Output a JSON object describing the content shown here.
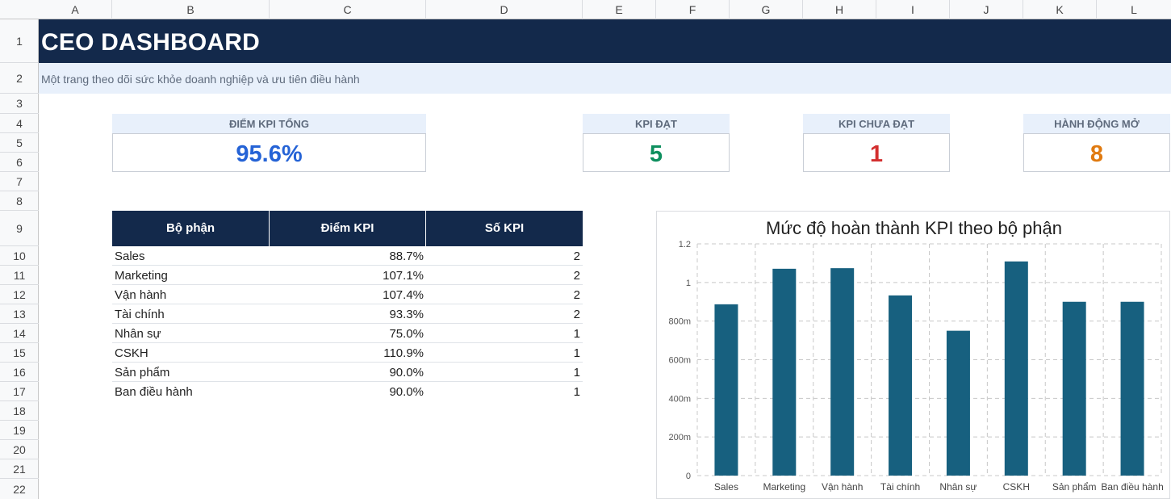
{
  "sheet": {
    "columns": [
      "A",
      "B",
      "C",
      "D",
      "E",
      "F",
      "G",
      "H",
      "I",
      "J",
      "K",
      "L"
    ],
    "rows": [
      "1",
      "2",
      "3",
      "4",
      "5",
      "6",
      "7",
      "8",
      "9",
      "10",
      "11",
      "12",
      "13",
      "14",
      "15",
      "16",
      "17",
      "18",
      "19",
      "20",
      "21",
      "22"
    ]
  },
  "header": {
    "title": "CEO DASHBOARD",
    "subtitle": "Một trang theo dõi sức khỏe doanh nghiệp và ưu tiên điều hành"
  },
  "kpis": {
    "total": {
      "label": "ĐIỂM KPI TỔNG",
      "value": "95.6%",
      "color": "#2563d6"
    },
    "met": {
      "label": "KPI ĐẠT",
      "value": "5",
      "color": "#0e8f5e"
    },
    "unmet": {
      "label": "KPI CHƯA ĐẠT",
      "value": "1",
      "color": "#d32f2f"
    },
    "actions": {
      "label": "HÀNH ĐỘNG MỞ",
      "value": "8",
      "color": "#e07a10"
    }
  },
  "table": {
    "headers": [
      "Bộ phận",
      "Điểm KPI",
      "Số KPI"
    ],
    "rows": [
      [
        "Sales",
        "88.7%",
        "2"
      ],
      [
        "Marketing",
        "107.1%",
        "2"
      ],
      [
        "Vận hành",
        "107.4%",
        "2"
      ],
      [
        "Tài chính",
        "93.3%",
        "2"
      ],
      [
        "Nhân sự",
        "75.0%",
        "1"
      ],
      [
        "CSKH",
        "110.9%",
        "1"
      ],
      [
        "Sản phẩm",
        "90.0%",
        "1"
      ],
      [
        "Ban điều hành",
        "90.0%",
        "1"
      ]
    ]
  },
  "chart_data": {
    "type": "bar",
    "title": "Mức độ hoàn thành KPI theo bộ phận",
    "categories": [
      "Sales",
      "Marketing",
      "Vận hành",
      "Tài chính",
      "Nhân sự",
      "CSKH",
      "Sản phẩm",
      "Ban điều hành"
    ],
    "values": [
      0.887,
      1.071,
      1.074,
      0.933,
      0.75,
      1.109,
      0.9,
      0.9
    ],
    "ylim": [
      0,
      1.2
    ],
    "yticks": [
      0,
      0.2,
      0.4,
      0.6,
      0.8,
      1,
      1.2
    ],
    "ytick_labels": [
      "0",
      "200m",
      "400m",
      "600m",
      "800m",
      "1",
      "1.2"
    ],
    "grid": true,
    "bar_color": "#17607f",
    "xlabel": "",
    "ylabel": ""
  }
}
